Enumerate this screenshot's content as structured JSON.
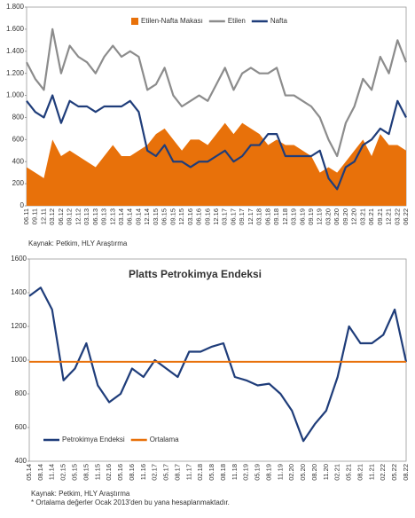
{
  "chart_data": [
    {
      "type": "line",
      "categories": [
        "06.11",
        "09.11",
        "12.11",
        "03.12",
        "06.12",
        "09.12",
        "12.12",
        "03.13",
        "06.13",
        "09.13",
        "12.13",
        "03.14",
        "06.14",
        "09.14",
        "12.14",
        "03.15",
        "06.15",
        "09.15",
        "12.15",
        "03.16",
        "06.16",
        "09.16",
        "12.16",
        "03.17",
        "06.17",
        "09.17",
        "12.17",
        "03.18",
        "06.18",
        "09.18",
        "12.18",
        "03.19",
        "06.19",
        "09.19",
        "12.19",
        "03.20",
        "06.20",
        "09.20",
        "12.20",
        "03.21",
        "06.21",
        "09.21",
        "12.21",
        "03.22",
        "06.22"
      ],
      "series": [
        {
          "name": "Etilen-Nafta Makası",
          "color": "#e8710a",
          "kind": "area",
          "values": [
            350,
            300,
            250,
            600,
            450,
            500,
            450,
            400,
            350,
            450,
            550,
            450,
            450,
            500,
            550,
            650,
            700,
            600,
            500,
            600,
            600,
            550,
            650,
            750,
            650,
            750,
            700,
            650,
            550,
            600,
            550,
            550,
            500,
            450,
            300,
            350,
            300,
            400,
            500,
            600,
            450,
            650,
            550,
            550,
            500
          ]
        },
        {
          "name": "Etilen",
          "color": "#8c8c8c",
          "kind": "line",
          "values": [
            1300,
            1150,
            1050,
            1600,
            1200,
            1450,
            1350,
            1300,
            1200,
            1350,
            1450,
            1350,
            1400,
            1350,
            1050,
            1100,
            1250,
            1000,
            900,
            950,
            1000,
            950,
            1100,
            1250,
            1050,
            1200,
            1250,
            1200,
            1200,
            1250,
            1000,
            1000,
            950,
            900,
            800,
            600,
            450,
            750,
            900,
            1150,
            1050,
            1350,
            1200,
            1500,
            1300
          ]
        },
        {
          "name": "Nafta",
          "color": "#1f3d7a",
          "kind": "line",
          "values": [
            950,
            850,
            800,
            1000,
            750,
            950,
            900,
            900,
            850,
            900,
            900,
            900,
            950,
            850,
            500,
            450,
            550,
            400,
            400,
            350,
            400,
            400,
            450,
            500,
            400,
            450,
            550,
            550,
            650,
            650,
            450,
            450,
            450,
            450,
            500,
            250,
            150,
            350,
            400,
            550,
            600,
            700,
            650,
            950,
            800
          ]
        }
      ],
      "ylim": [
        0,
        1800
      ],
      "yticks": [
        0,
        200,
        400,
        600,
        800,
        {
          "value": 1000,
          "label": "1.000"
        },
        {
          "value": 1200,
          "label": "1.200"
        },
        {
          "value": 1400,
          "label": "1.400"
        },
        {
          "value": 1600,
          "label": "1.600"
        },
        {
          "value": 1800,
          "label": "1.800"
        }
      ],
      "source": "Kaynak: Petkim, HLY Araştırma"
    },
    {
      "type": "line",
      "title": "Platts Petrokimya Endeksi",
      "categories": [
        "05.14",
        "08.14",
        "11.14",
        "02.15",
        "05.15",
        "08.15",
        "11.15",
        "02.16",
        "05.16",
        "08.16",
        "11.16",
        "02.17",
        "05.17",
        "08.17",
        "11.17",
        "02.18",
        "05.18",
        "08.18",
        "11.18",
        "02.19",
        "05.19",
        "08.19",
        "11.19",
        "02.20",
        "05.20",
        "08.20",
        "11.20",
        "02.21",
        "05.21",
        "08.21",
        "11.21",
        "02.22",
        "05.22",
        "08.22"
      ],
      "series": [
        {
          "name": "Petrokimya Endeksi",
          "color": "#1f3d7a",
          "kind": "line",
          "values": [
            1380,
            1430,
            1300,
            880,
            950,
            1100,
            850,
            750,
            800,
            950,
            900,
            1000,
            950,
            900,
            1050,
            1050,
            1080,
            1100,
            900,
            880,
            850,
            860,
            800,
            700,
            520,
            620,
            700,
            900,
            1200,
            1100,
            1100,
            1150,
            1300,
            990
          ]
        }
      ],
      "reference_line": {
        "name": "Ortalama",
        "color": "#e8710a",
        "value": 990
      },
      "ylim": [
        400,
        1600
      ],
      "yticks": [
        400,
        600,
        800,
        1000,
        1200,
        1400,
        1600
      ],
      "source": "Kaynak: Petkim, HLY Araştırma",
      "note": "* Ortalama değerler Ocak 2013'den bu yana hesaplanmaktadır."
    }
  ]
}
